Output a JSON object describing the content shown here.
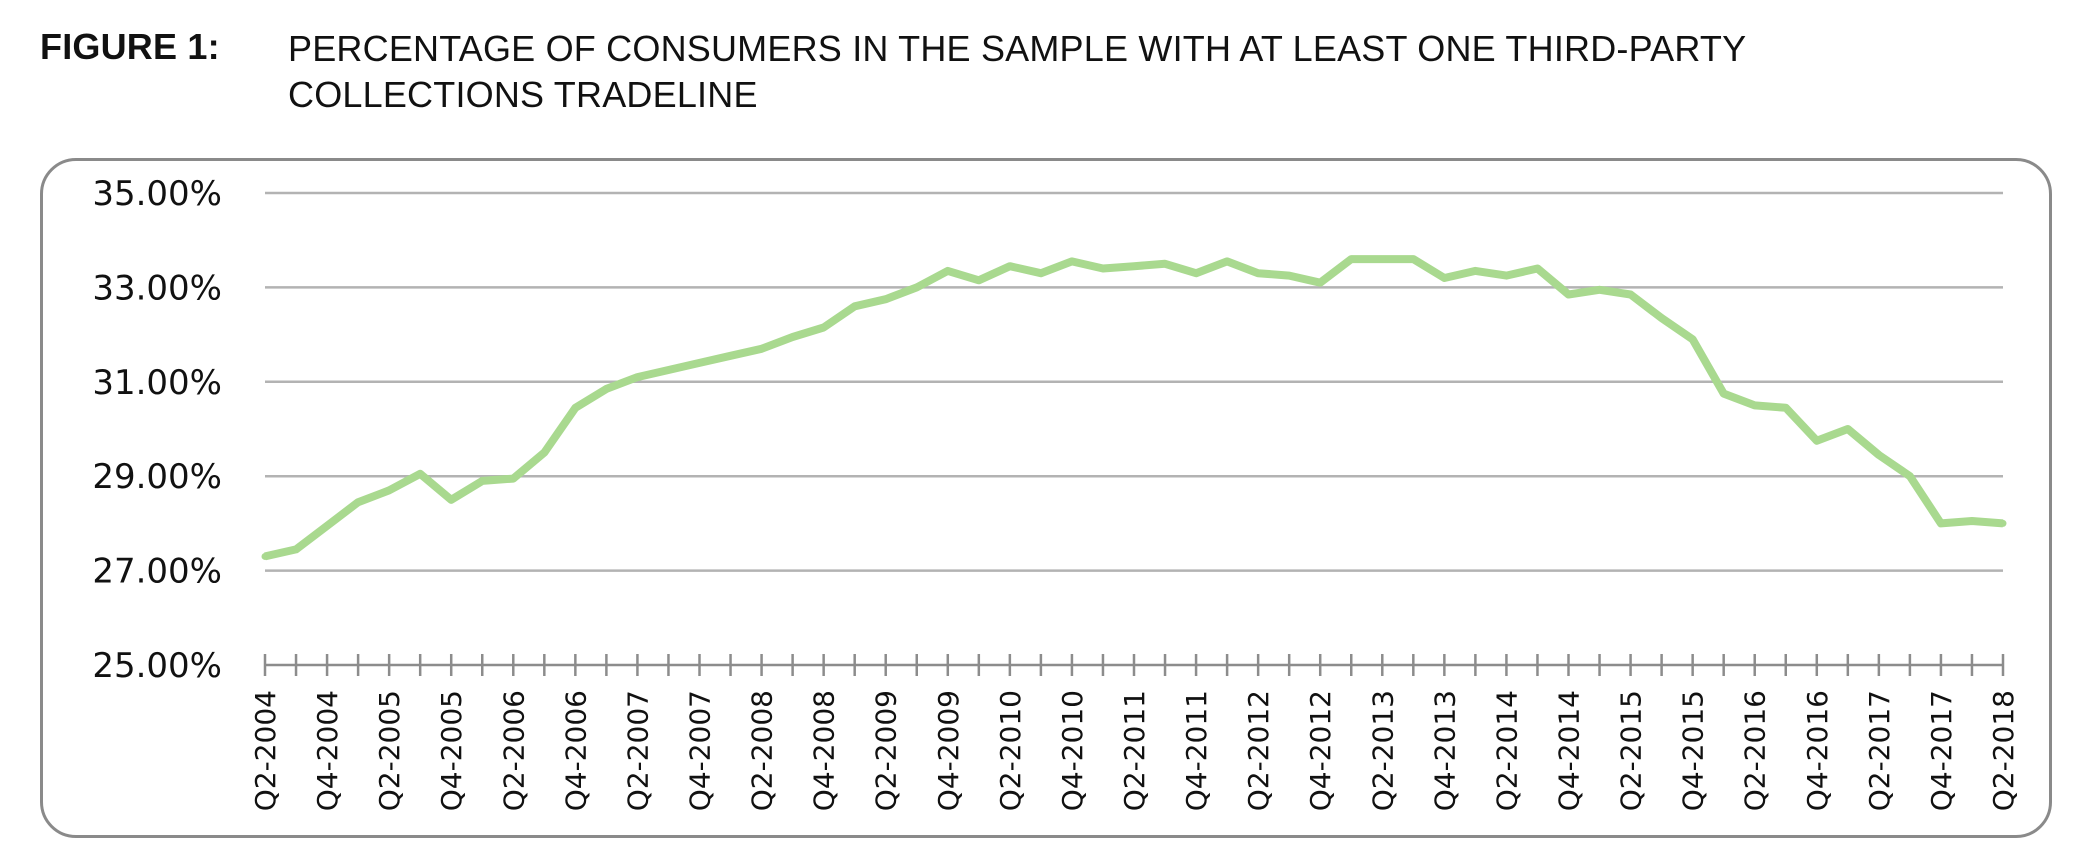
{
  "figure": {
    "label": "FIGURE 1:",
    "title_line1": "PERCENTAGE OF CONSUMERS IN THE SAMPLE WITH AT LEAST ONE THIRD-PARTY",
    "title_line2": "COLLECTIONS TRADELINE"
  },
  "chart_data": {
    "type": "line",
    "title": "PERCENTAGE OF CONSUMERS IN THE SAMPLE WITH AT LEAST ONE THIRD-PARTY COLLECTIONS TRADELINE",
    "xlabel": "",
    "ylabel": "",
    "ylim": [
      25,
      35
    ],
    "yticks": [
      25,
      27,
      29,
      31,
      33,
      35
    ],
    "ytick_labels": [
      "25.00%",
      "27.00%",
      "29.00%",
      "31.00%",
      "33.00%",
      "35.00%"
    ],
    "grid": true,
    "line_color": "#a9d98f",
    "x": [
      "Q2-2004",
      "Q3-2004",
      "Q4-2004",
      "Q1-2005",
      "Q2-2005",
      "Q3-2005",
      "Q4-2005",
      "Q1-2006",
      "Q2-2006",
      "Q3-2006",
      "Q4-2006",
      "Q1-2007",
      "Q2-2007",
      "Q3-2007",
      "Q4-2007",
      "Q1-2008",
      "Q2-2008",
      "Q3-2008",
      "Q4-2008",
      "Q1-2009",
      "Q2-2009",
      "Q3-2009",
      "Q4-2009",
      "Q1-2010",
      "Q2-2010",
      "Q3-2010",
      "Q4-2010",
      "Q1-2011",
      "Q2-2011",
      "Q3-2011",
      "Q4-2011",
      "Q1-2012",
      "Q2-2012",
      "Q3-2012",
      "Q4-2012",
      "Q1-2013",
      "Q2-2013",
      "Q3-2013",
      "Q4-2013",
      "Q1-2014",
      "Q2-2014",
      "Q3-2014",
      "Q4-2014",
      "Q1-2015",
      "Q2-2015",
      "Q3-2015",
      "Q4-2015",
      "Q1-2016",
      "Q2-2016",
      "Q3-2016",
      "Q4-2016",
      "Q1-2017",
      "Q2-2017",
      "Q3-2017",
      "Q4-2017",
      "Q1-2018",
      "Q2-2018"
    ],
    "x_tick_labels": [
      "Q2-2004",
      "Q4-2004",
      "Q2-2005",
      "Q4-2005",
      "Q2-2006",
      "Q4-2006",
      "Q2-2007",
      "Q4-2007",
      "Q2-2008",
      "Q4-2008",
      "Q2-2009",
      "Q4-2009",
      "Q2-2010",
      "Q4-2010",
      "Q2-2011",
      "Q4-2011",
      "Q2-2012",
      "Q4-2012",
      "Q2-2013",
      "Q4-2013",
      "Q2-2014",
      "Q4-2014",
      "Q2-2015",
      "Q4-2015",
      "Q2-2016",
      "Q4-2016",
      "Q2-2017",
      "Q4-2017",
      "Q2-2018"
    ],
    "series": [
      {
        "values": [
          27.3,
          27.45,
          27.95,
          28.45,
          28.7,
          29.05,
          28.5,
          28.9,
          28.95,
          29.5,
          30.45,
          30.85,
          31.1,
          31.25,
          31.4,
          31.55,
          31.7,
          31.95,
          32.15,
          32.6,
          32.75,
          33.0,
          33.35,
          33.15,
          33.45,
          33.3,
          33.55,
          33.4,
          33.45,
          33.5,
          33.3,
          33.55,
          33.3,
          33.25,
          33.1,
          33.6,
          33.6,
          33.6,
          33.2,
          33.35,
          33.25,
          33.4,
          32.85,
          32.95,
          32.85,
          32.35,
          31.9,
          30.75,
          30.5,
          30.45,
          29.75,
          30.0,
          29.45,
          29.0,
          28.0,
          28.05,
          28.0
        ]
      }
    ]
  }
}
